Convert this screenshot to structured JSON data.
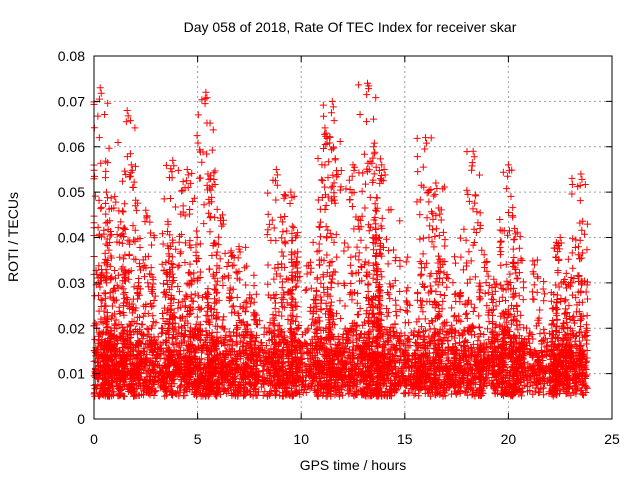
{
  "chart_data": {
    "type": "scatter",
    "title": "Day 058 of 2018, Rate Of TEC Index for receiver skar",
    "xlabel": "GPS time / hours",
    "ylabel": "ROTI / TECUs",
    "xlim": [
      0,
      25
    ],
    "ylim": [
      0,
      0.08
    ],
    "x_ticks": [
      0,
      5,
      10,
      15,
      20,
      25
    ],
    "x_tick_labels": [
      "0",
      "5",
      "10",
      "15",
      "20",
      "25"
    ],
    "y_ticks": [
      0,
      0.01,
      0.02,
      0.03,
      0.04,
      0.05,
      0.06,
      0.07,
      0.08
    ],
    "y_tick_labels": [
      "0",
      "0.01",
      "0.02",
      "0.03",
      "0.04",
      "0.05",
      "0.06",
      "0.07",
      "0.08"
    ],
    "grid": true,
    "marker": "plus",
    "series": [
      {
        "name": "ROTI",
        "color": "#ff0000",
        "x_range": [
          0,
          23.8
        ],
        "baseline_range": [
          0.005,
          0.022
        ],
        "peaks": [
          {
            "x": 0.3,
            "y": 0.073
          },
          {
            "x": 0.6,
            "y": 0.05
          },
          {
            "x": 1.0,
            "y": 0.049
          },
          {
            "x": 1.6,
            "y": 0.068
          },
          {
            "x": 1.8,
            "y": 0.056
          },
          {
            "x": 2.5,
            "y": 0.046
          },
          {
            "x": 3.8,
            "y": 0.057
          },
          {
            "x": 4.5,
            "y": 0.055
          },
          {
            "x": 5.4,
            "y": 0.072
          },
          {
            "x": 5.5,
            "y": 0.054
          },
          {
            "x": 6.2,
            "y": 0.045
          },
          {
            "x": 7.0,
            "y": 0.038
          },
          {
            "x": 8.8,
            "y": 0.055
          },
          {
            "x": 9.5,
            "y": 0.05
          },
          {
            "x": 11.2,
            "y": 0.063
          },
          {
            "x": 11.5,
            "y": 0.07
          },
          {
            "x": 12.5,
            "y": 0.056
          },
          {
            "x": 13.2,
            "y": 0.074
          },
          {
            "x": 13.5,
            "y": 0.06
          },
          {
            "x": 14.0,
            "y": 0.055
          },
          {
            "x": 16.0,
            "y": 0.062
          },
          {
            "x": 16.5,
            "y": 0.052
          },
          {
            "x": 18.3,
            "y": 0.059
          },
          {
            "x": 20.0,
            "y": 0.056
          },
          {
            "x": 20.3,
            "y": 0.042
          },
          {
            "x": 22.5,
            "y": 0.04
          },
          {
            "x": 23.5,
            "y": 0.054
          }
        ]
      }
    ]
  }
}
